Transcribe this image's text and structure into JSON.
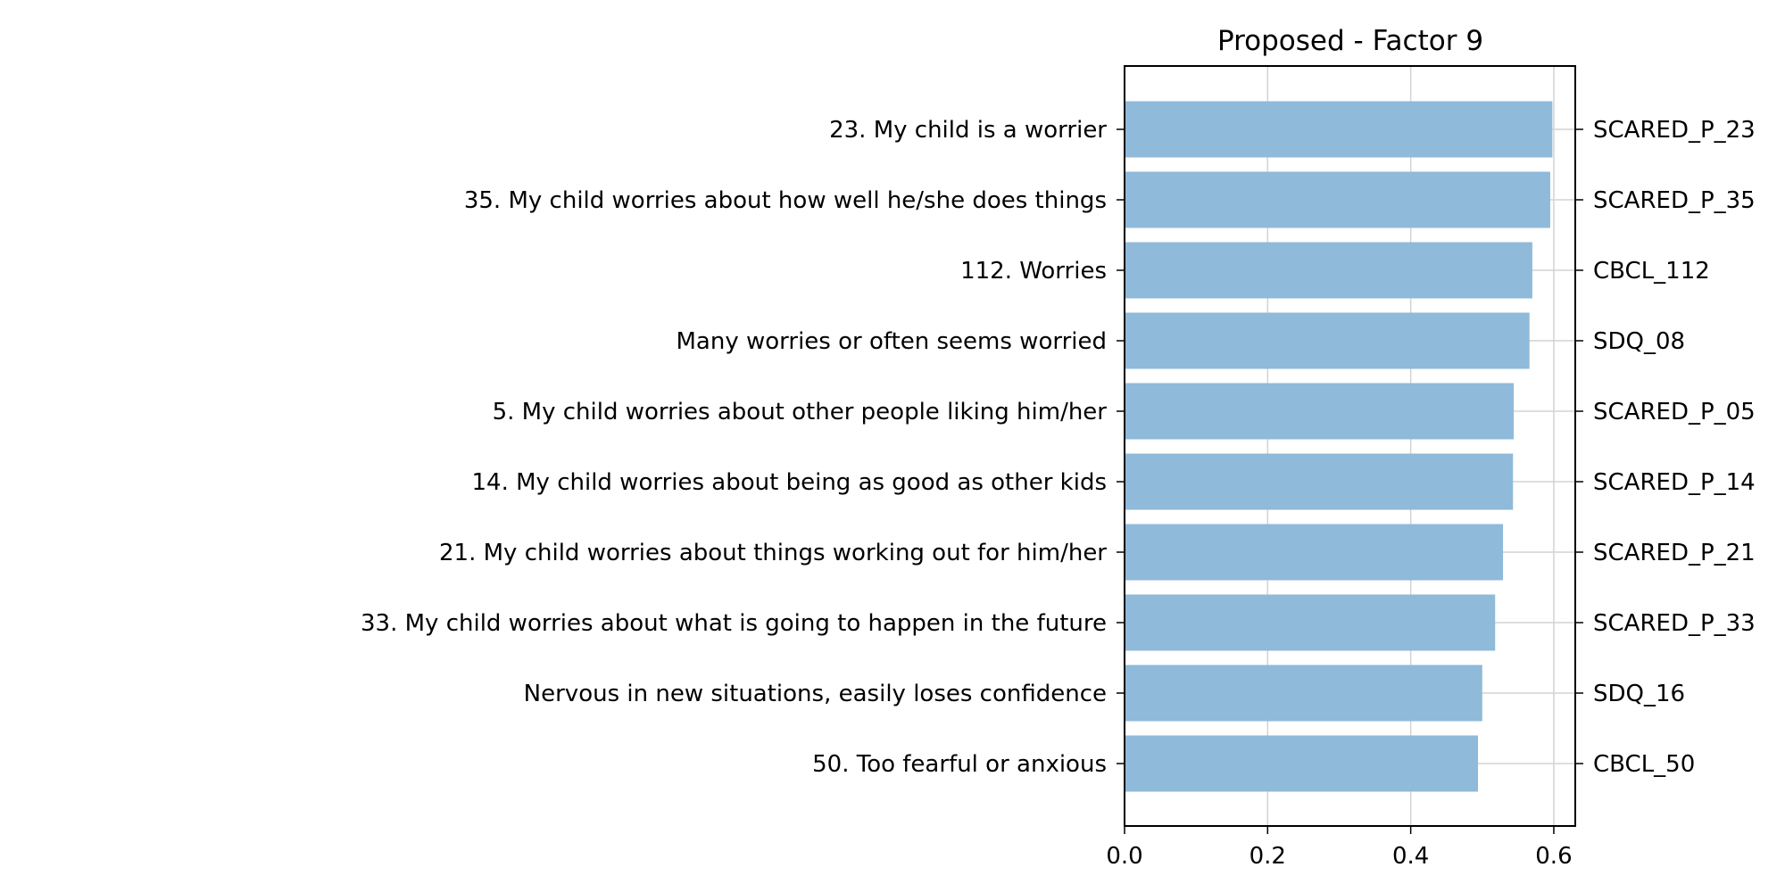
{
  "chart_data": {
    "type": "bar",
    "orientation": "horizontal",
    "title": "Proposed - Factor 9",
    "xlabel": "",
    "ylabel": "",
    "xlim": [
      0,
      0.63
    ],
    "xticks": [
      "0.0",
      "0.2",
      "0.4",
      "0.6"
    ],
    "grid": true,
    "categories": [
      "23. My child is a worrier",
      "35. My child worries about how well he/she does things",
      "112. Worries",
      "Many worries or often seems worried",
      "5. My child worries about other people liking him/her",
      "14. My child worries about being as good as other kids",
      "21. My child worries about things working out for him/her",
      "33. My child worries about what is going to happen in the future",
      "Nervous in new situations, easily loses confidence",
      "50. Too fearful or anxious"
    ],
    "codes": [
      "SCARED_P_23",
      "SCARED_P_35",
      "CBCL_112",
      "SDQ_08",
      "SCARED_P_05",
      "SCARED_P_14",
      "SCARED_P_21",
      "SCARED_P_33",
      "SDQ_16",
      "CBCL_50"
    ],
    "values": [
      0.598,
      0.595,
      0.57,
      0.566,
      0.544,
      0.543,
      0.529,
      0.518,
      0.5,
      0.494
    ],
    "bar_color": "#8fbad9"
  }
}
